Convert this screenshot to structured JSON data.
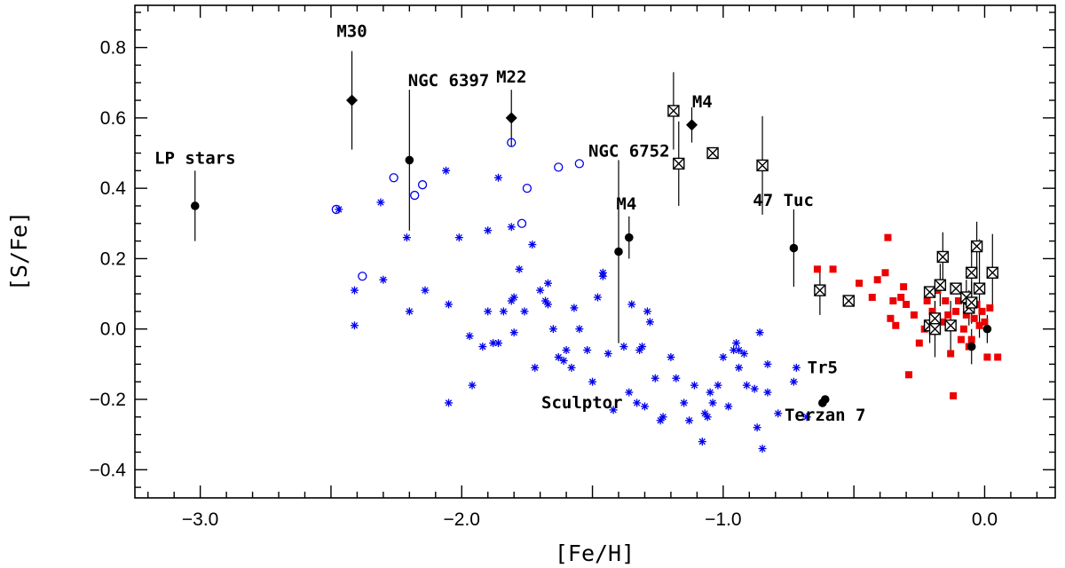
{
  "chart_data": {
    "type": "scatter",
    "xlabel": "[Fe/H]",
    "ylabel": "[S/Fe]",
    "xlim": [
      -3.25,
      0.27
    ],
    "ylim": [
      -0.48,
      0.92
    ],
    "xticks": [
      -3.0,
      -2.0,
      -1.0,
      0.0
    ],
    "xtick_labels": [
      "−3.0",
      "−2.0",
      "−1.0",
      "0.0"
    ],
    "yticks": [
      -0.4,
      -0.2,
      0.0,
      0.2,
      0.4,
      0.6,
      0.8
    ],
    "ytick_labels": [
      "−0.4",
      "−0.2",
      "0.0",
      "0.2",
      "0.4",
      "0.6",
      "0.8"
    ],
    "colors": {
      "blue": "#0000ee",
      "red": "#ee0000",
      "black": "#000000"
    },
    "series": [
      {
        "name": "blue asterisks",
        "marker": "asterisk",
        "color": "#0000ee",
        "points": [
          [
            -2.47,
            0.34
          ],
          [
            -2.41,
            0.11
          ],
          [
            -2.41,
            0.01
          ],
          [
            -2.31,
            0.36
          ],
          [
            -2.3,
            0.14
          ],
          [
            -2.21,
            0.26
          ],
          [
            -2.2,
            0.05
          ],
          [
            -2.14,
            0.11
          ],
          [
            -2.06,
            0.45
          ],
          [
            -2.05,
            0.07
          ],
          [
            -2.05,
            -0.21
          ],
          [
            -2.01,
            0.26
          ],
          [
            -1.97,
            -0.02
          ],
          [
            -1.96,
            -0.16
          ],
          [
            -1.92,
            -0.05
          ],
          [
            -1.9,
            0.28
          ],
          [
            -1.9,
            0.05
          ],
          [
            -1.88,
            -0.04
          ],
          [
            -1.86,
            0.43
          ],
          [
            -1.86,
            -0.04
          ],
          [
            -1.84,
            0.05
          ],
          [
            -1.81,
            0.08
          ],
          [
            -1.8,
            0.09
          ],
          [
            -1.81,
            0.29
          ],
          [
            -1.8,
            -0.01
          ],
          [
            -1.78,
            0.17
          ],
          [
            -1.76,
            0.05
          ],
          [
            -1.73,
            0.24
          ],
          [
            -1.72,
            -0.11
          ],
          [
            -1.7,
            0.11
          ],
          [
            -1.68,
            0.08
          ],
          [
            -1.67,
            0.13
          ],
          [
            -1.67,
            0.07
          ],
          [
            -1.65,
            0.0
          ],
          [
            -1.63,
            -0.08
          ],
          [
            -1.61,
            -0.09
          ],
          [
            -1.6,
            -0.06
          ],
          [
            -1.58,
            -0.11
          ],
          [
            -1.57,
            0.06
          ],
          [
            -1.55,
            0.0
          ],
          [
            -1.52,
            -0.06
          ],
          [
            -1.5,
            -0.15
          ],
          [
            -1.48,
            0.09
          ],
          [
            -1.46,
            0.16
          ],
          [
            -1.46,
            0.15
          ],
          [
            -1.44,
            -0.07
          ],
          [
            -1.42,
            -0.23
          ],
          [
            -1.38,
            -0.05
          ],
          [
            -1.36,
            -0.18
          ],
          [
            -1.35,
            0.07
          ],
          [
            -1.33,
            -0.21
          ],
          [
            -1.32,
            -0.06
          ],
          [
            -1.31,
            -0.05
          ],
          [
            -1.3,
            -0.22
          ],
          [
            -1.29,
            0.05
          ],
          [
            -1.28,
            0.02
          ],
          [
            -1.26,
            -0.14
          ],
          [
            -1.24,
            -0.26
          ],
          [
            -1.23,
            -0.25
          ],
          [
            -1.2,
            -0.08
          ],
          [
            -1.18,
            -0.14
          ],
          [
            -1.15,
            -0.21
          ],
          [
            -1.13,
            -0.26
          ],
          [
            -1.11,
            -0.16
          ],
          [
            -1.08,
            -0.32
          ],
          [
            -1.07,
            -0.24
          ],
          [
            -1.06,
            -0.25
          ],
          [
            -1.05,
            -0.18
          ],
          [
            -1.04,
            -0.21
          ],
          [
            -1.02,
            -0.16
          ],
          [
            -1.0,
            -0.08
          ],
          [
            -0.98,
            -0.22
          ],
          [
            -0.96,
            -0.06
          ],
          [
            -0.95,
            -0.04
          ],
          [
            -0.94,
            -0.06
          ],
          [
            -0.94,
            -0.11
          ],
          [
            -0.92,
            -0.07
          ],
          [
            -0.91,
            -0.16
          ],
          [
            -0.88,
            -0.17
          ],
          [
            -0.87,
            -0.28
          ],
          [
            -0.86,
            -0.01
          ],
          [
            -0.85,
            -0.34
          ],
          [
            -0.83,
            -0.1
          ],
          [
            -0.83,
            -0.18
          ],
          [
            -0.79,
            -0.24
          ],
          [
            -0.72,
            -0.11
          ],
          [
            -0.73,
            -0.15
          ],
          [
            -0.68,
            -0.25
          ]
        ]
      },
      {
        "name": "blue open circles",
        "marker": "circle-open",
        "color": "#0000ee",
        "points": [
          [
            -2.48,
            0.34
          ],
          [
            -2.38,
            0.15
          ],
          [
            -2.26,
            0.43
          ],
          [
            -2.18,
            0.38
          ],
          [
            -2.15,
            0.41
          ],
          [
            -1.81,
            0.53
          ],
          [
            -1.77,
            0.3
          ],
          [
            -1.75,
            0.4
          ],
          [
            -1.63,
            0.46
          ],
          [
            -1.55,
            0.47
          ]
        ]
      },
      {
        "name": "red filled squares",
        "marker": "square-filled",
        "color": "#ee0000",
        "points": [
          [
            -0.64,
            0.17
          ],
          [
            -0.58,
            0.17
          ],
          [
            -0.48,
            0.13
          ],
          [
            -0.43,
            0.09
          ],
          [
            -0.41,
            0.14
          ],
          [
            -0.38,
            0.16
          ],
          [
            -0.37,
            0.26
          ],
          [
            -0.36,
            0.03
          ],
          [
            -0.35,
            0.08
          ],
          [
            -0.34,
            0.01
          ],
          [
            -0.32,
            0.09
          ],
          [
            -0.31,
            0.12
          ],
          [
            -0.3,
            0.07
          ],
          [
            -0.29,
            -0.13
          ],
          [
            -0.27,
            0.04
          ],
          [
            -0.25,
            -0.04
          ],
          [
            -0.23,
            0.0
          ],
          [
            -0.22,
            0.08
          ],
          [
            -0.2,
            0.05
          ],
          [
            -0.19,
            0.03
          ],
          [
            -0.18,
            0.11
          ],
          [
            -0.16,
            0.02
          ],
          [
            -0.15,
            0.08
          ],
          [
            -0.14,
            0.04
          ],
          [
            -0.13,
            -0.07
          ],
          [
            -0.12,
            -0.19
          ],
          [
            -0.11,
            0.05
          ],
          [
            -0.1,
            0.08
          ],
          [
            -0.09,
            -0.03
          ],
          [
            -0.08,
            0.0
          ],
          [
            -0.07,
            0.04
          ],
          [
            -0.06,
            -0.05
          ],
          [
            -0.05,
            -0.03
          ],
          [
            -0.04,
            0.03
          ],
          [
            -0.03,
            0.07
          ],
          [
            -0.02,
            0.01
          ],
          [
            -0.01,
            0.05
          ],
          [
            0.0,
            0.02
          ],
          [
            0.01,
            -0.08
          ],
          [
            0.02,
            0.06
          ],
          [
            0.05,
            -0.08
          ]
        ]
      },
      {
        "name": "crossed squares",
        "marker": "square-cross",
        "color": "#000000",
        "points": [
          {
            "x": -1.19,
            "y": 0.62,
            "err": 0.11
          },
          {
            "x": -1.17,
            "y": 0.47,
            "err": 0.12
          },
          {
            "x": -1.04,
            "y": 0.5,
            "err": 0
          },
          {
            "x": -0.85,
            "y": 0.465,
            "err": 0.14
          },
          {
            "x": -0.63,
            "y": 0.11,
            "err": 0.07
          },
          {
            "x": -0.52,
            "y": 0.08,
            "err": 0
          },
          {
            "x": -0.21,
            "y": 0.105,
            "err": 0
          },
          {
            "x": -0.21,
            "y": 0.01,
            "err": 0.05
          },
          {
            "x": -0.19,
            "y": 0.03,
            "err": 0.05
          },
          {
            "x": -0.19,
            "y": 0.0,
            "err": 0.08
          },
          {
            "x": -0.17,
            "y": 0.125,
            "err": 0.06
          },
          {
            "x": -0.16,
            "y": 0.205,
            "err": 0.07
          },
          {
            "x": -0.13,
            "y": 0.01,
            "err": 0.07
          },
          {
            "x": -0.11,
            "y": 0.115,
            "err": 0
          },
          {
            "x": -0.07,
            "y": 0.09,
            "err": 0.05
          },
          {
            "x": -0.06,
            "y": 0.06,
            "err": 0.05
          },
          {
            "x": -0.05,
            "y": 0.075,
            "err": 0.06
          },
          {
            "x": -0.05,
            "y": 0.16,
            "err": 0.08
          },
          {
            "x": -0.03,
            "y": 0.235,
            "err": 0.07
          },
          {
            "x": -0.02,
            "y": 0.115,
            "err": 0.14
          },
          {
            "x": 0.03,
            "y": 0.16,
            "err": 0.11
          }
        ]
      },
      {
        "name": "black filled circles",
        "marker": "circle-filled",
        "color": "#000000",
        "points": [
          {
            "x": -3.02,
            "y": 0.35,
            "err": 0.1
          },
          {
            "x": -2.2,
            "y": 0.48,
            "err": 0.2
          },
          {
            "x": -1.4,
            "y": 0.22,
            "err": 0.26
          },
          {
            "x": -1.36,
            "y": 0.26,
            "err": 0.06
          },
          {
            "x": -0.73,
            "y": 0.23,
            "err": 0.11
          },
          {
            "x": -0.61,
            "y": -0.2,
            "err": 0
          },
          {
            "x": -0.62,
            "y": -0.21,
            "err": 0
          },
          {
            "x": -0.05,
            "y": -0.05,
            "err": 0.05
          },
          {
            "x": 0.01,
            "y": 0.0,
            "err": 0.04
          }
        ]
      },
      {
        "name": "black filled diamonds",
        "marker": "diamond-filled",
        "color": "#000000",
        "points": [
          {
            "x": -2.42,
            "y": 0.65,
            "err": 0.14
          },
          {
            "x": -1.81,
            "y": 0.6,
            "err": 0.08
          },
          {
            "x": -1.12,
            "y": 0.58,
            "err": 0.05
          }
        ]
      }
    ],
    "annotations": [
      {
        "text": "M30",
        "x": -2.42,
        "y": 0.83
      },
      {
        "text": "NGC 6397",
        "x": -2.05,
        "y": 0.69
      },
      {
        "text": "M22",
        "x": -1.81,
        "y": 0.7
      },
      {
        "text": "M4",
        "x": -1.08,
        "y": 0.63
      },
      {
        "text": "NGC 6752",
        "x": -1.36,
        "y": 0.49
      },
      {
        "text": "LP stars",
        "x": -3.02,
        "y": 0.47
      },
      {
        "text": "M4",
        "x": -1.37,
        "y": 0.34
      },
      {
        "text": "47 Tuc",
        "x": -0.77,
        "y": 0.35
      },
      {
        "text": "Tr5",
        "x": -0.62,
        "y": -0.125
      },
      {
        "text": "Terzan 7",
        "x": -0.61,
        "y": -0.26
      },
      {
        "text": "Sculptor",
        "x": -1.54,
        "y": -0.225
      }
    ]
  }
}
